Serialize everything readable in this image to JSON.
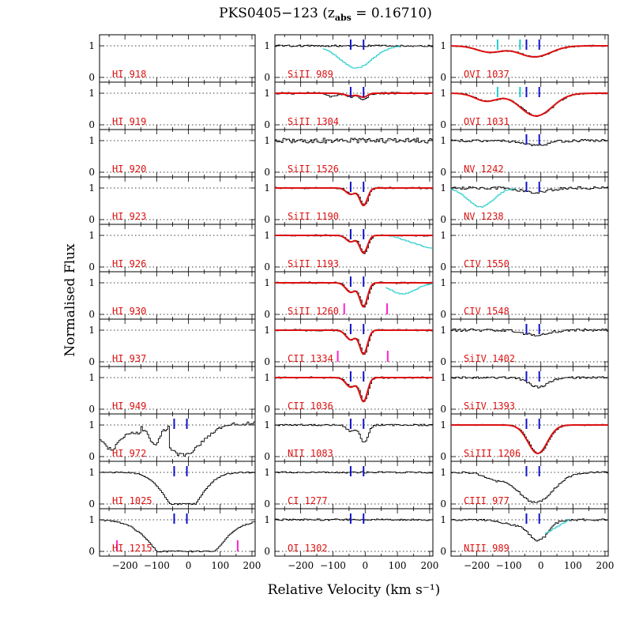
{
  "chart_data": {
    "type": "line",
    "title_main": "PKS0405−123 (z",
    "title_sub": "abs",
    "title_tail": " = 0.16710)",
    "xlabel": "Relative Velocity (km s⁻¹)",
    "ylabel": "Normalised Flux",
    "xlim": [
      -280,
      210
    ],
    "ylim": [
      -0.15,
      1.35
    ],
    "xticks": [
      "−200",
      "−100",
      "0",
      "100",
      "200"
    ],
    "xtick_values": [
      -200,
      -100,
      0,
      100,
      200
    ],
    "yticks": [
      "0",
      "1"
    ],
    "component_velocities": [
      -45,
      -5
    ],
    "colors": {
      "data": "#000000",
      "model": "#dd1111",
      "blend": "#22cccc",
      "component": "#1111cc",
      "contaminant": "#ff22cc",
      "label": "#dd1111"
    },
    "columns": [
      [
        {
          "label": "HI 918",
          "profile": "none"
        },
        {
          "label": "HI 919",
          "profile": "none"
        },
        {
          "label": "HI 920",
          "profile": "none"
        },
        {
          "label": "HI 923",
          "profile": "none"
        },
        {
          "label": "HI 926",
          "profile": "none"
        },
        {
          "label": "HI 930",
          "profile": "none"
        },
        {
          "label": "HI 937",
          "profile": "none"
        },
        {
          "label": "HI 949",
          "profile": "none"
        },
        {
          "label": "HI 972",
          "profile": "hi972",
          "ticks": true
        },
        {
          "label": "HI 1025",
          "profile": "hi1025",
          "ticks": true
        },
        {
          "label": "HI 1215",
          "profile": "hi1215",
          "ticks": true,
          "contaminants": [
            -225,
            155
          ]
        }
      ],
      [
        {
          "label": "SiII 989",
          "profile": "flat",
          "ticks": true,
          "blend": "si989"
        },
        {
          "label": "SiII 1304",
          "profile": "weak",
          "ticks": true,
          "model": true
        },
        {
          "label": "SiII 1526",
          "profile": "noisy"
        },
        {
          "label": "SiII 1190",
          "profile": "medium",
          "ticks": true,
          "model": true
        },
        {
          "label": "SiII 1193",
          "profile": "medium",
          "ticks": true,
          "model": true,
          "blend": "si1193"
        },
        {
          "label": "SiII 1260",
          "profile": "strong",
          "ticks": true,
          "model": true,
          "blend": "si1260",
          "contaminants": [
            -65,
            68
          ]
        },
        {
          "label": "CII 1334",
          "profile": "strong",
          "ticks": true,
          "model": true,
          "contaminants": [
            -85,
            70
          ]
        },
        {
          "label": "CII 1036",
          "profile": "strong",
          "ticks": true,
          "model": true
        },
        {
          "label": "NII 1083",
          "profile": "medium",
          "ticks": true
        },
        {
          "label": "CI 1277",
          "profile": "flat",
          "ticks": true
        },
        {
          "label": "OI 1302",
          "profile": "flat",
          "ticks": true
        }
      ],
      [
        {
          "label": "OVI 1037",
          "profile": "ovi1037",
          "ticks": true,
          "model": true,
          "cyanTicks": [
            -135,
            -65
          ]
        },
        {
          "label": "OVI 1031",
          "profile": "ovi1031",
          "ticks": true,
          "model": true,
          "cyanTicks": [
            -135,
            -65
          ]
        },
        {
          "label": "NV 1242",
          "profile": "weakbroad",
          "ticks": true
        },
        {
          "label": "NV 1238",
          "profile": "weakbroad",
          "ticks": true,
          "blend": "nv1238"
        },
        {
          "label": "CIV 1550",
          "profile": "none"
        },
        {
          "label": "CIV 1548",
          "profile": "none"
        },
        {
          "label": "SiIV 1402",
          "profile": "weakbroad",
          "ticks": true
        },
        {
          "label": "SiIV 1393",
          "profile": "siiv1393",
          "ticks": true
        },
        {
          "label": "SiIII 1206",
          "profile": "siiii",
          "ticks": true,
          "model": true
        },
        {
          "label": "CIII 977",
          "profile": "ciii",
          "ticks": true
        },
        {
          "label": "NIII 989",
          "profile": "niii",
          "ticks": true,
          "blend": "niii"
        }
      ]
    ]
  }
}
